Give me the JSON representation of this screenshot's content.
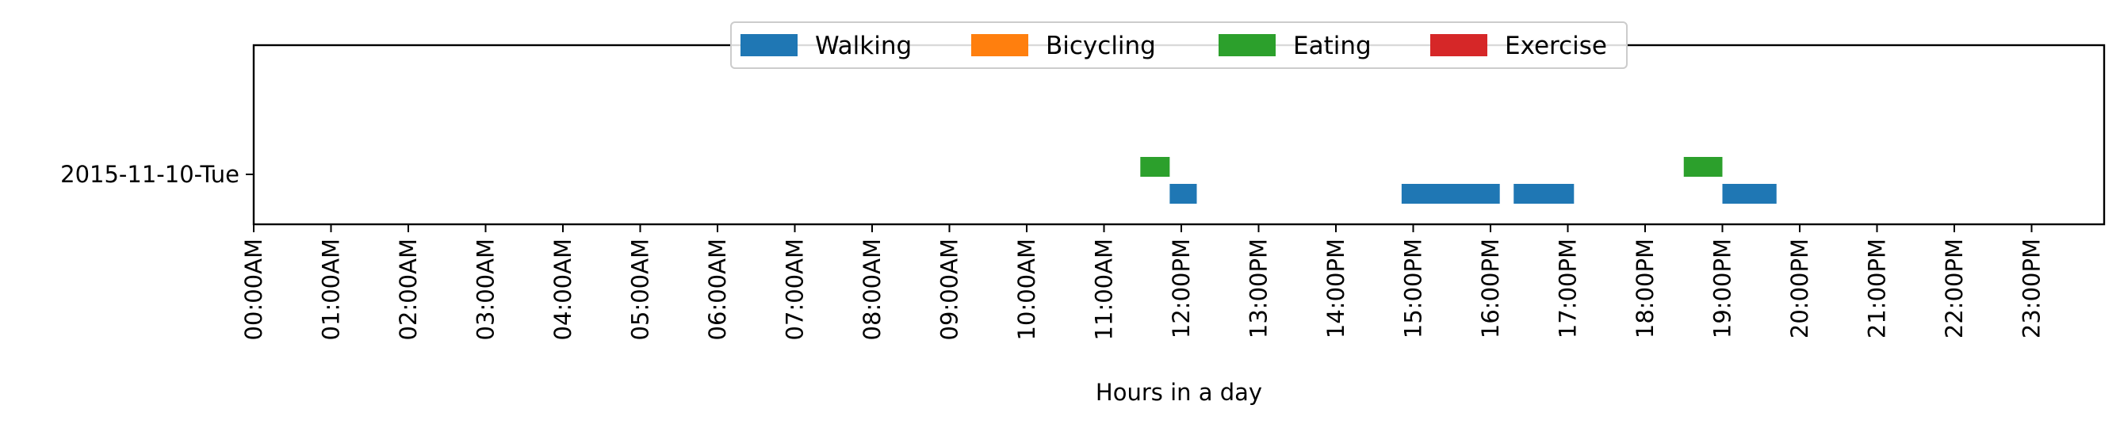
{
  "chart_data": {
    "type": "timeline",
    "title": "",
    "xlabel": "Hours in a day",
    "ylabel": "",
    "xlim": [
      0,
      24
    ],
    "y_categories": [
      "2015-11-10-Tue"
    ],
    "x_tick_labels": [
      "00:00AM",
      "01:00AM",
      "02:00AM",
      "03:00AM",
      "04:00AM",
      "05:00AM",
      "06:00AM",
      "07:00AM",
      "08:00AM",
      "09:00AM",
      "10:00AM",
      "11:00AM",
      "12:00PM",
      "13:00PM",
      "14:00PM",
      "15:00PM",
      "16:00PM",
      "17:00PM",
      "18:00PM",
      "19:00PM",
      "20:00PM",
      "21:00PM",
      "22:00PM",
      "23:00PM"
    ],
    "legend_position": "top-center",
    "grid": false,
    "series": [
      {
        "name": "Walking",
        "color": "#1f77b4",
        "intervals": [
          {
            "day": "2015-11-10-Tue",
            "start": 11.85,
            "end": 12.2
          },
          {
            "day": "2015-11-10-Tue",
            "start": 14.85,
            "end": 16.12
          },
          {
            "day": "2015-11-10-Tue",
            "start": 16.3,
            "end": 17.08
          },
          {
            "day": "2015-11-10-Tue",
            "start": 19.0,
            "end": 19.7
          }
        ]
      },
      {
        "name": "Bicycling",
        "color": "#ff7f0e",
        "intervals": []
      },
      {
        "name": "Eating",
        "color": "#2ca02c",
        "intervals": [
          {
            "day": "2015-11-10-Tue",
            "start": 11.47,
            "end": 11.85
          },
          {
            "day": "2015-11-10-Tue",
            "start": 18.5,
            "end": 19.0
          }
        ]
      },
      {
        "name": "Exercise",
        "color": "#d62728",
        "intervals": []
      }
    ]
  }
}
